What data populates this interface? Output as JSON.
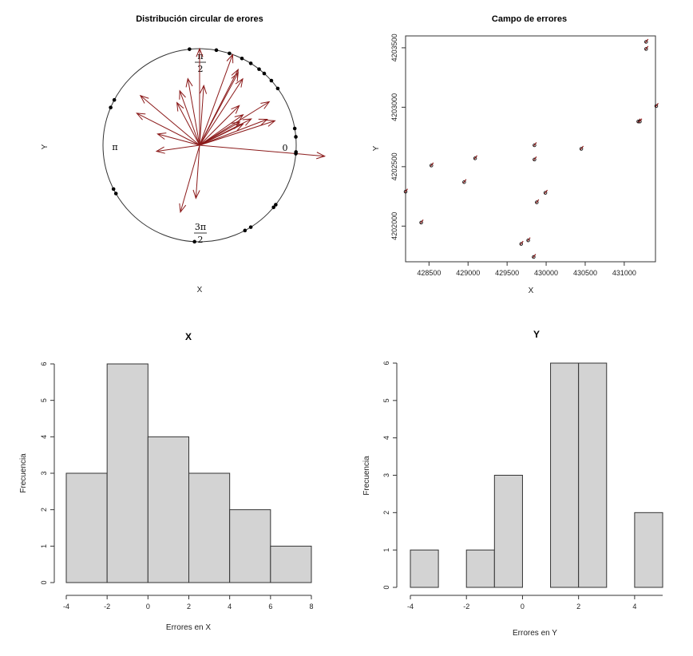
{
  "chart_data": [
    {
      "type": "rose",
      "title": "Distribución circular de erores",
      "xlabel": "X",
      "ylabel": "Y",
      "angle_labels": {
        "zero": "0",
        "pi_half_num": "π",
        "pi_half_den": "2",
        "pi": "π",
        "three_pi_half_num": "3π",
        "three_pi_half_den": "2"
      },
      "vectors": [
        {
          "angle_deg": 90,
          "length": 1.0
        },
        {
          "angle_deg": 70,
          "length": 1.0
        },
        {
          "angle_deg": 63,
          "length": 0.88
        },
        {
          "angle_deg": 62,
          "length": 0.85
        },
        {
          "angle_deg": 57,
          "length": 0.82
        },
        {
          "angle_deg": 32,
          "length": 0.85
        },
        {
          "angle_deg": 27,
          "length": 0.6
        },
        {
          "angle_deg": 26,
          "length": 0.5
        },
        {
          "angle_deg": 30,
          "length": 0.48
        },
        {
          "angle_deg": 35,
          "length": 0.55
        },
        {
          "angle_deg": 21,
          "length": 0.75
        },
        {
          "angle_deg": 18,
          "length": 0.82
        },
        {
          "angle_deg": -5,
          "length": 1.3
        },
        {
          "angle_deg": 100,
          "length": 0.7
        },
        {
          "angle_deg": 110,
          "length": 0.6
        },
        {
          "angle_deg": 140,
          "length": 0.8
        },
        {
          "angle_deg": 153,
          "length": 0.73
        },
        {
          "angle_deg": 165,
          "length": 0.45
        },
        {
          "angle_deg": 188,
          "length": 0.45
        },
        {
          "angle_deg": 254,
          "length": 0.72
        },
        {
          "angle_deg": 266,
          "length": 0.55
        },
        {
          "angle_deg": 118,
          "length": 0.5
        },
        {
          "angle_deg": 86,
          "length": 0.62
        },
        {
          "angle_deg": 45,
          "length": 0.58
        }
      ],
      "points_deg": [
        96,
        80,
        72,
        64,
        58,
        52,
        48,
        42,
        36,
        10,
        5,
        -4,
        -5,
        -38,
        -40,
        -58,
        -62,
        -93,
        157,
        152,
        207,
        210
      ]
    },
    {
      "type": "scatter",
      "title": "Campo de errores",
      "xlabel": "X",
      "ylabel": "Y",
      "xlim": [
        428200,
        431400
      ],
      "ylim": [
        4201700,
        4203600
      ],
      "xticks": [
        "428500",
        "429000",
        "429500",
        "430000",
        "430500",
        "431000"
      ],
      "yticks": [
        "4202000",
        "4202500",
        "4203000",
        "4203500"
      ],
      "points": [
        {
          "x": 428200,
          "y": 4202290
        },
        {
          "x": 428400,
          "y": 4202030
        },
        {
          "x": 428530,
          "y": 4202510
        },
        {
          "x": 428950,
          "y": 4202370
        },
        {
          "x": 429090,
          "y": 4202570
        },
        {
          "x": 429680,
          "y": 4201850
        },
        {
          "x": 429770,
          "y": 4201880
        },
        {
          "x": 429840,
          "y": 4201740
        },
        {
          "x": 429850,
          "y": 4202680
        },
        {
          "x": 429850,
          "y": 4202560
        },
        {
          "x": 429880,
          "y": 4202200
        },
        {
          "x": 429990,
          "y": 4202280
        },
        {
          "x": 430450,
          "y": 4202650
        },
        {
          "x": 431180,
          "y": 4202880
        },
        {
          "x": 431200,
          "y": 4202880
        },
        {
          "x": 431280,
          "y": 4203550
        },
        {
          "x": 431280,
          "y": 4203490
        },
        {
          "x": 431410,
          "y": 4203010
        }
      ]
    },
    {
      "type": "bar",
      "title": "X",
      "xlabel": "Errores en  X",
      "ylabel": "Frecuencia",
      "bins": [
        [
          -4,
          -2
        ],
        [
          -2,
          0
        ],
        [
          0,
          2
        ],
        [
          2,
          4
        ],
        [
          4,
          6
        ],
        [
          6,
          8
        ]
      ],
      "values": [
        3,
        6,
        4,
        3,
        2,
        1
      ],
      "xlim": [
        -4,
        8
      ],
      "ylim": [
        0,
        6
      ],
      "xticks": [
        "-4",
        "-2",
        "0",
        "2",
        "4",
        "6",
        "8"
      ],
      "yticks": [
        "0",
        "1",
        "2",
        "3",
        "4",
        "5",
        "6"
      ]
    },
    {
      "type": "bar",
      "title": "Y",
      "xlabel": "Errores en  Y",
      "ylabel": "Frecuencia",
      "bins": [
        [
          -4,
          -3
        ],
        [
          -3,
          -2
        ],
        [
          -2,
          -1
        ],
        [
          -1,
          0
        ],
        [
          0,
          1
        ],
        [
          1,
          2
        ],
        [
          2,
          3
        ],
        [
          3,
          4
        ],
        [
          4,
          5
        ]
      ],
      "values": [
        1,
        0,
        1,
        3,
        0,
        6,
        6,
        0,
        2
      ],
      "xlim": [
        -4,
        5
      ],
      "ylim": [
        0,
        6
      ],
      "xticks": [
        "-4",
        "-2",
        "0",
        "2",
        "4"
      ],
      "yticks": [
        "0",
        "1",
        "2",
        "3",
        "4",
        "5",
        "6"
      ]
    }
  ],
  "colors": {
    "arrow": "#8b1a1a",
    "bar_fill": "#d3d3d3",
    "point": "#000000"
  }
}
